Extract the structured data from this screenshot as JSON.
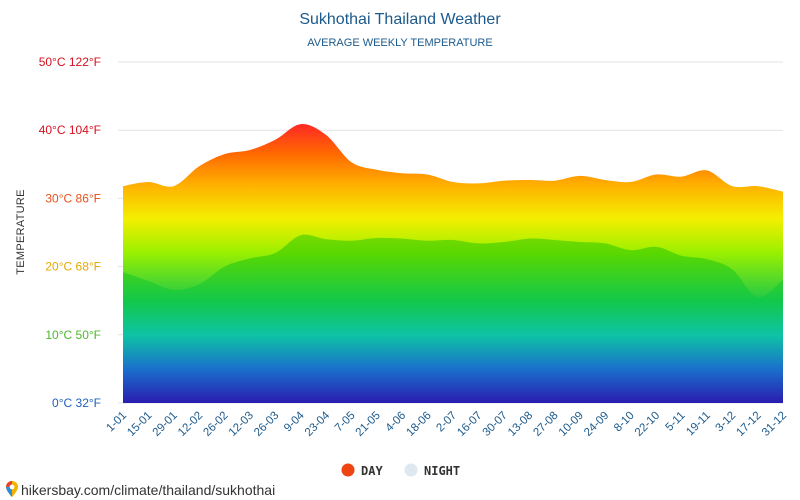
{
  "header": {
    "title": "Sukhothai Thailand Weather",
    "subtitle": "AVERAGE WEEKLY TEMPERATURE"
  },
  "footer": {
    "url": "hikersbay.com/climate/thailand/sukhothai",
    "pin_icon": "location-pin-icon"
  },
  "legend": {
    "day_label": "DAY",
    "night_label": "NIGHT",
    "day_color": "#ee4411",
    "night_color": "#dde8f0"
  },
  "chart_data": {
    "type": "area",
    "title": "Sukhothai Thailand Weather",
    "subtitle": "AVERAGE WEEKLY TEMPERATURE",
    "ylabel": "TEMPERATURE",
    "ylim": [
      0,
      50
    ],
    "grid": true,
    "legend_position": "bottom-center",
    "yticks": [
      {
        "value": 0,
        "label": "0°C 32°F",
        "color": "#1f5fbf"
      },
      {
        "value": 10,
        "label": "10°C 50°F",
        "color": "#4cb82e"
      },
      {
        "value": 20,
        "label": "20°C 68°F",
        "color": "#e6a800"
      },
      {
        "value": 30,
        "label": "30°C 86°F",
        "color": "#e8501a"
      },
      {
        "value": 40,
        "label": "40°C 104°F",
        "color": "#d6101e"
      },
      {
        "value": 50,
        "label": "50°C 122°F",
        "color": "#d6101e"
      }
    ],
    "x_labels": [
      "1-01",
      "15-01",
      "29-01",
      "12-02",
      "26-02",
      "12-03",
      "26-03",
      "9-04",
      "23-04",
      "7-05",
      "21-05",
      "4-06",
      "18-06",
      "2-07",
      "16-07",
      "30-07",
      "13-08",
      "27-08",
      "10-09",
      "24-09",
      "8-10",
      "22-10",
      "5-11",
      "19-11",
      "3-12",
      "17-12",
      "31-12"
    ],
    "series": [
      {
        "name": "DAY",
        "values": [
          31.8,
          32.4,
          31.8,
          34.7,
          36.5,
          37.1,
          38.6,
          40.9,
          39.3,
          35.3,
          34.2,
          33.7,
          33.5,
          32.4,
          32.2,
          32.6,
          32.7,
          32.6,
          33.3,
          32.7,
          32.4,
          33.5,
          33.2,
          34.1,
          31.8,
          31.8,
          31.0
        ]
      },
      {
        "name": "NIGHT",
        "values": [
          19.2,
          17.9,
          16.6,
          17.4,
          20.0,
          21.2,
          22.0,
          24.6,
          24.0,
          23.8,
          24.2,
          24.1,
          23.8,
          23.9,
          23.4,
          23.6,
          24.1,
          23.9,
          23.6,
          23.4,
          22.4,
          22.9,
          21.6,
          21.1,
          19.6,
          15.5,
          18.1
        ]
      }
    ]
  }
}
